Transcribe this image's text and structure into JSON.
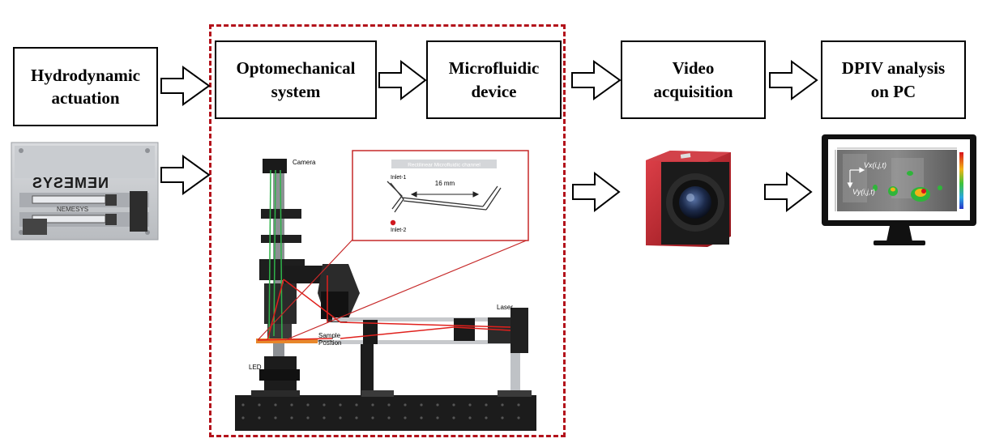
{
  "steps": {
    "hydrodynamic": "Hydrodynamic\nactuation",
    "optomechanical": "Optomechanical\nsystem",
    "microfluidic": "Microfluidic\ndevice",
    "video": "Video\nacquisition",
    "dpiv": "DPIV analysis\non PC"
  },
  "pump": {
    "brand": "NEMESYS"
  },
  "optics": {
    "camera": "Camera",
    "sample": "Sample\nPosition",
    "led": "LED",
    "laser": "Laser"
  },
  "channel": {
    "title": "Rectilinear Microfluidic channel",
    "inlet1": "Inlet-1",
    "inlet2": "Inlet-2",
    "length": "16  mm"
  },
  "monitor": {
    "vx": "Vx(i,j,t)",
    "vy": "Vy(i,j,t)"
  },
  "colors": {
    "dashed_border": "#b3121b",
    "camera_red": "#c8202a",
    "laser_red": "#e0201c"
  }
}
